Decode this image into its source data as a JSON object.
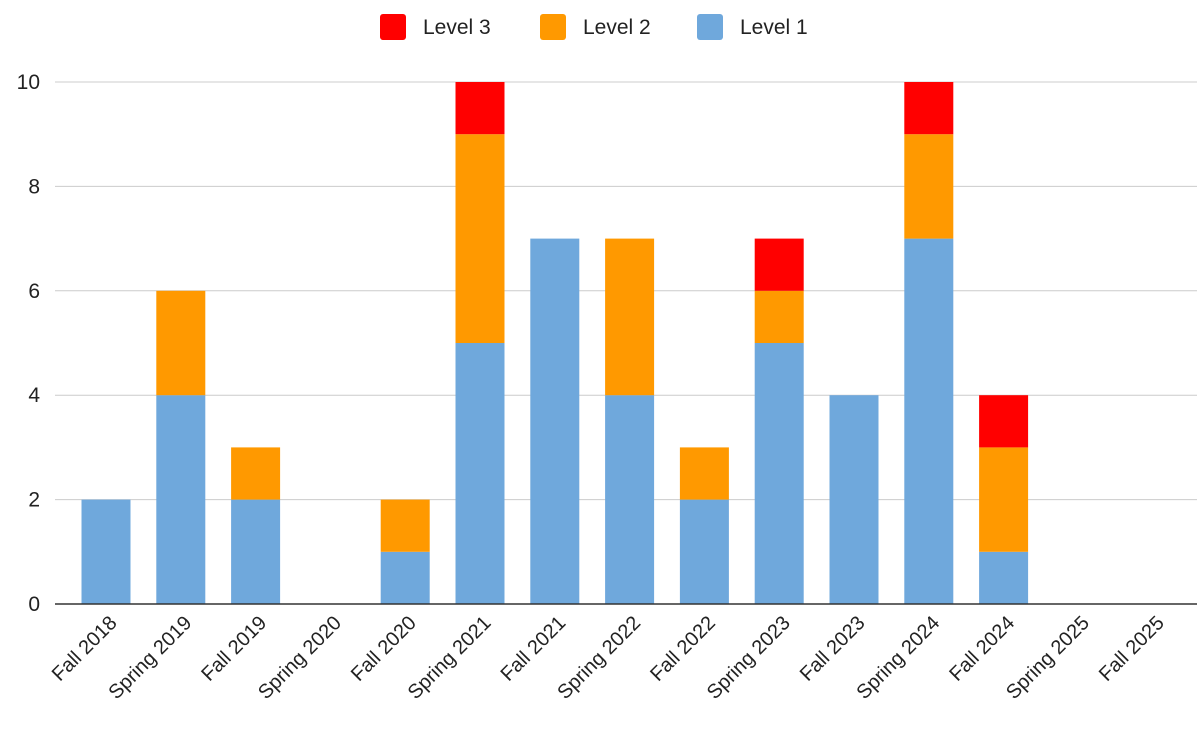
{
  "chart_data": {
    "type": "bar",
    "stacked": true,
    "categories": [
      "Fall 2018",
      "Spring 2019",
      "Fall 2019",
      "Spring 2020",
      "Fall 2020",
      "Spring 2021",
      "Fall 2021",
      "Spring 2022",
      "Fall 2022",
      "Spring 2023",
      "Fall 2023",
      "Spring 2024",
      "Fall 2024",
      "Spring 2025",
      "Fall 2025"
    ],
    "series": [
      {
        "name": "Level 1",
        "color": "#6fa8dc",
        "values": [
          2,
          4,
          2,
          0,
          1,
          5,
          7,
          4,
          2,
          5,
          4,
          7,
          1,
          0,
          0
        ]
      },
      {
        "name": "Level 2",
        "color": "#ff9900",
        "values": [
          0,
          2,
          1,
          0,
          1,
          4,
          0,
          3,
          1,
          1,
          0,
          2,
          2,
          0,
          0
        ]
      },
      {
        "name": "Level 3",
        "color": "#ff0000",
        "values": [
          0,
          0,
          0,
          0,
          0,
          1,
          0,
          0,
          0,
          1,
          0,
          1,
          1,
          0,
          0
        ]
      }
    ],
    "legend_order": [
      "Level 3",
      "Level 2",
      "Level 1"
    ],
    "legend_position": "top-center",
    "ylim": [
      0,
      10
    ],
    "yticks": [
      0,
      2,
      4,
      6,
      8,
      10
    ],
    "grid": true,
    "title": "",
    "xlabel": "",
    "ylabel": ""
  }
}
